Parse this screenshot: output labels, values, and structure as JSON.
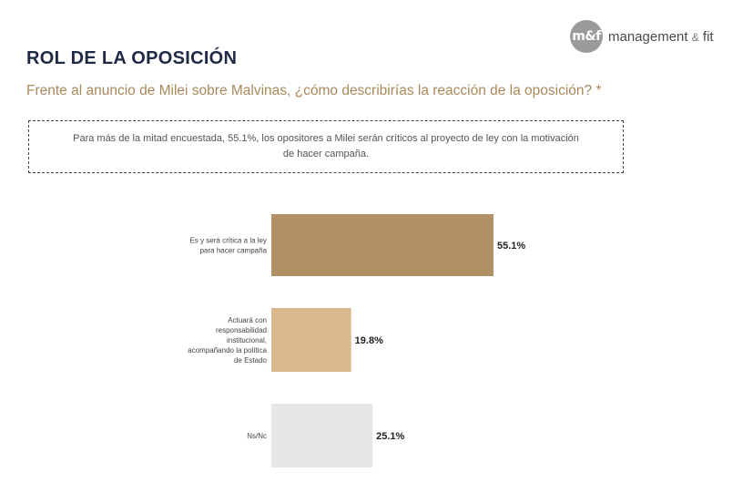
{
  "brand": {
    "mark": "m&f",
    "name": "management",
    "amp": "&",
    "suffix": "fit"
  },
  "header": {
    "title": "ROL DE LA OPOSICIÓN",
    "subtitle": "Frente al anuncio de Milei sobre Malvinas, ¿cómo describirías la reacción de la oposición? *"
  },
  "note": {
    "text": "Para más de la mitad encuestada, 55.1%, los opositores a Milei serán críticos al proyecto de ley con la motivación de hacer campaña."
  },
  "chart_data": {
    "type": "bar",
    "orientation": "horizontal",
    "title": "",
    "xlabel": "",
    "ylabel": "",
    "unit": "%",
    "xlim": [
      0,
      55.1
    ],
    "categories": [
      [
        "Es y será crítica a la ley",
        "para hacer campaña"
      ],
      [
        "Actuará con",
        "responsabilidad",
        "institucional,",
        "acompañando la política",
        "de Estado"
      ],
      [
        "Ns/Nc"
      ]
    ],
    "values": [
      55.1,
      19.8,
      25.1
    ],
    "value_labels": [
      "55.1%",
      "19.8%",
      "25.1%"
    ],
    "colors": [
      "#b19163",
      "#d9b98c",
      "#e6e6e6"
    ]
  }
}
